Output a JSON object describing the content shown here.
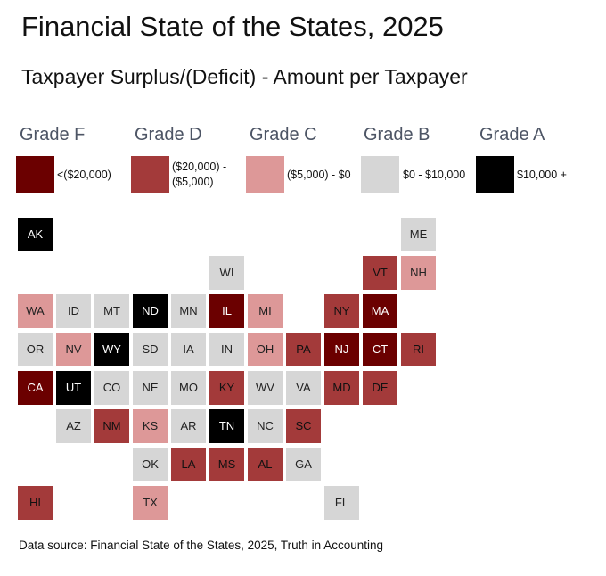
{
  "chart_data": {
    "type": "tile-map",
    "title": "Financial State of the States, 2025",
    "subtitle": "Taxpayer Surplus/(Deficit) - Amount per Taxpayer",
    "source": "Data source: Financial State of the States, 2025, Truth in Accounting",
    "legend": [
      {
        "key": "F",
        "grade": "Grade F",
        "range": "<($20,000)",
        "color": "#6b0000",
        "text": "#ffffff"
      },
      {
        "key": "D",
        "grade": "Grade D",
        "range": "($20,000) -\n($5,000)",
        "color": "#a33a3a",
        "text": "#111111"
      },
      {
        "key": "C",
        "grade": "Grade C",
        "range": "($5,000) - $0",
        "color": "#dd9898",
        "text": "#222222"
      },
      {
        "key": "B",
        "grade": "Grade B",
        "range": "$0  - $10,000",
        "color": "#d6d6d6",
        "text": "#222222"
      },
      {
        "key": "A",
        "grade": "Grade A",
        "range": "$10,000 +",
        "color": "#000000",
        "text": "#ffffff"
      }
    ],
    "states": [
      {
        "abbr": "AK",
        "grade": "A",
        "col": 0,
        "row": 0
      },
      {
        "abbr": "ME",
        "grade": "B",
        "col": 10,
        "row": 0
      },
      {
        "abbr": "WI",
        "grade": "B",
        "col": 5,
        "row": 1
      },
      {
        "abbr": "VT",
        "grade": "D",
        "col": 9,
        "row": 1
      },
      {
        "abbr": "NH",
        "grade": "C",
        "col": 10,
        "row": 1
      },
      {
        "abbr": "WA",
        "grade": "C",
        "col": 0,
        "row": 2
      },
      {
        "abbr": "ID",
        "grade": "B",
        "col": 1,
        "row": 2
      },
      {
        "abbr": "MT",
        "grade": "B",
        "col": 2,
        "row": 2
      },
      {
        "abbr": "ND",
        "grade": "A",
        "col": 3,
        "row": 2
      },
      {
        "abbr": "MN",
        "grade": "B",
        "col": 4,
        "row": 2
      },
      {
        "abbr": "IL",
        "grade": "F",
        "col": 5,
        "row": 2
      },
      {
        "abbr": "MI",
        "grade": "C",
        "col": 6,
        "row": 2
      },
      {
        "abbr": "NY",
        "grade": "D",
        "col": 8,
        "row": 2
      },
      {
        "abbr": "MA",
        "grade": "F",
        "col": 9,
        "row": 2
      },
      {
        "abbr": "OR",
        "grade": "B",
        "col": 0,
        "row": 3
      },
      {
        "abbr": "NV",
        "grade": "C",
        "col": 1,
        "row": 3
      },
      {
        "abbr": "WY",
        "grade": "A",
        "col": 2,
        "row": 3
      },
      {
        "abbr": "SD",
        "grade": "B",
        "col": 3,
        "row": 3
      },
      {
        "abbr": "IA",
        "grade": "B",
        "col": 4,
        "row": 3
      },
      {
        "abbr": "IN",
        "grade": "B",
        "col": 5,
        "row": 3
      },
      {
        "abbr": "OH",
        "grade": "C",
        "col": 6,
        "row": 3
      },
      {
        "abbr": "PA",
        "grade": "D",
        "col": 7,
        "row": 3
      },
      {
        "abbr": "NJ",
        "grade": "F",
        "col": 8,
        "row": 3
      },
      {
        "abbr": "CT",
        "grade": "F",
        "col": 9,
        "row": 3
      },
      {
        "abbr": "RI",
        "grade": "D",
        "col": 10,
        "row": 3
      },
      {
        "abbr": "CA",
        "grade": "F",
        "col": 0,
        "row": 4
      },
      {
        "abbr": "UT",
        "grade": "A",
        "col": 1,
        "row": 4
      },
      {
        "abbr": "CO",
        "grade": "B",
        "col": 2,
        "row": 4
      },
      {
        "abbr": "NE",
        "grade": "B",
        "col": 3,
        "row": 4
      },
      {
        "abbr": "MO",
        "grade": "B",
        "col": 4,
        "row": 4
      },
      {
        "abbr": "KY",
        "grade": "D",
        "col": 5,
        "row": 4
      },
      {
        "abbr": "WV",
        "grade": "B",
        "col": 6,
        "row": 4
      },
      {
        "abbr": "VA",
        "grade": "B",
        "col": 7,
        "row": 4
      },
      {
        "abbr": "MD",
        "grade": "D",
        "col": 8,
        "row": 4
      },
      {
        "abbr": "DE",
        "grade": "D",
        "col": 9,
        "row": 4
      },
      {
        "abbr": "AZ",
        "grade": "B",
        "col": 1,
        "row": 5
      },
      {
        "abbr": "NM",
        "grade": "D",
        "col": 2,
        "row": 5
      },
      {
        "abbr": "KS",
        "grade": "C",
        "col": 3,
        "row": 5
      },
      {
        "abbr": "AR",
        "grade": "B",
        "col": 4,
        "row": 5
      },
      {
        "abbr": "TN",
        "grade": "A",
        "col": 5,
        "row": 5
      },
      {
        "abbr": "NC",
        "grade": "B",
        "col": 6,
        "row": 5
      },
      {
        "abbr": "SC",
        "grade": "D",
        "col": 7,
        "row": 5
      },
      {
        "abbr": "OK",
        "grade": "B",
        "col": 3,
        "row": 6
      },
      {
        "abbr": "LA",
        "grade": "D",
        "col": 4,
        "row": 6
      },
      {
        "abbr": "MS",
        "grade": "D",
        "col": 5,
        "row": 6
      },
      {
        "abbr": "AL",
        "grade": "D",
        "col": 6,
        "row": 6
      },
      {
        "abbr": "GA",
        "grade": "B",
        "col": 7,
        "row": 6
      },
      {
        "abbr": "HI",
        "grade": "D",
        "col": 0,
        "row": 7
      },
      {
        "abbr": "TX",
        "grade": "C",
        "col": 3,
        "row": 7
      },
      {
        "abbr": "FL",
        "grade": "B",
        "col": 8,
        "row": 7
      }
    ]
  }
}
